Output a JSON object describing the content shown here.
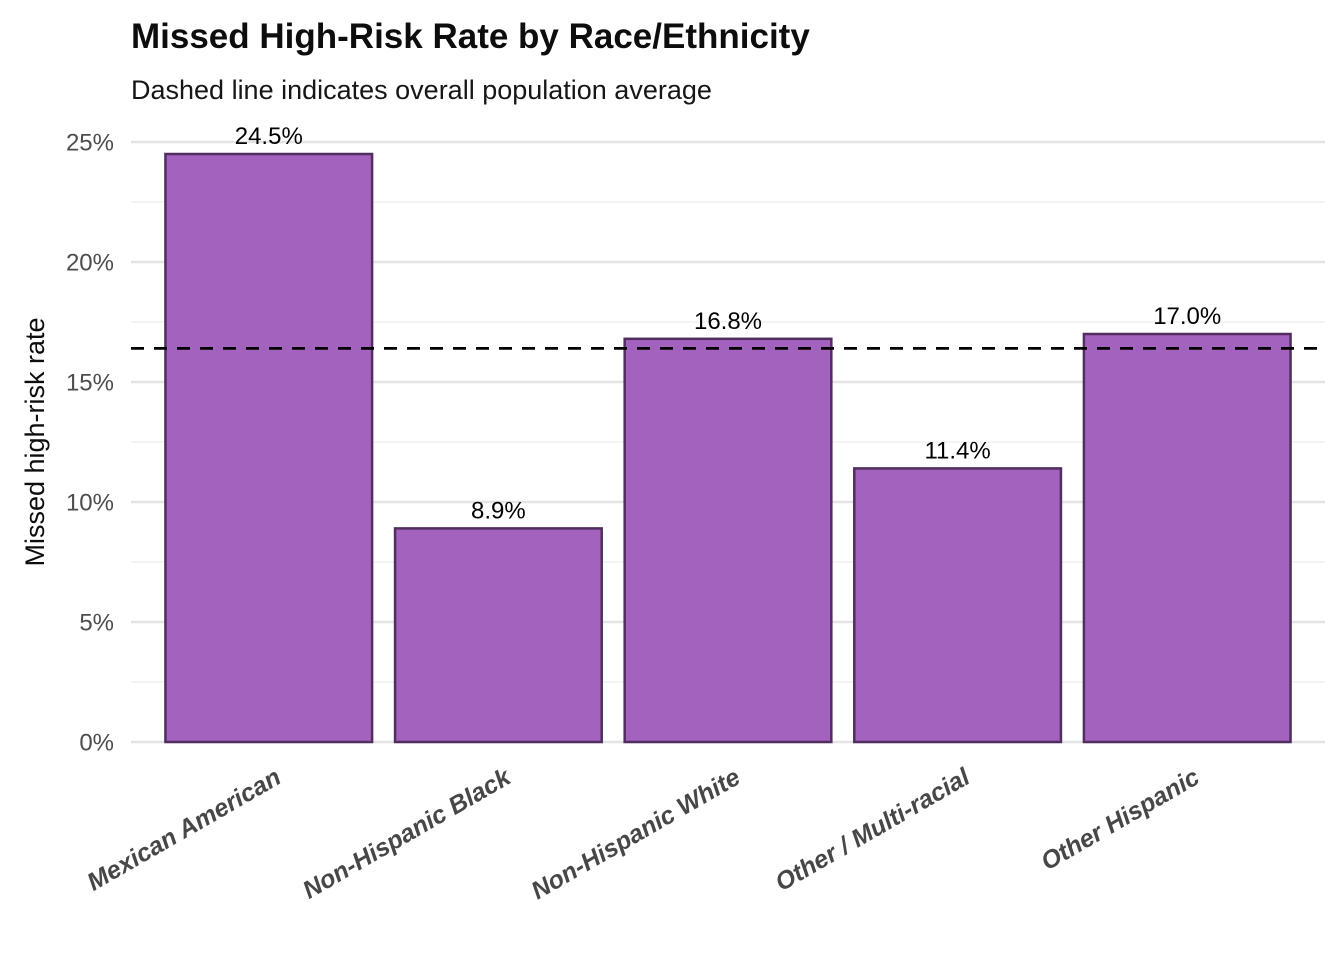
{
  "chart_data": {
    "type": "bar",
    "title": "Missed High-Risk Rate by Race/Ethnicity",
    "subtitle": "Dashed line indicates overall population average",
    "ylabel": "Missed high-risk rate",
    "xlabel": "",
    "categories": [
      "Mexican American",
      "Non-Hispanic Black",
      "Non-Hispanic White",
      "Other / Multi-racial",
      "Other Hispanic"
    ],
    "values": [
      24.5,
      8.9,
      16.8,
      11.4,
      17.0
    ],
    "value_labels": [
      "24.5%",
      "8.9%",
      "16.8%",
      "11.4%",
      "17.0%"
    ],
    "y_ticks": [
      0,
      5,
      10,
      15,
      20,
      25
    ],
    "y_tick_labels": [
      "0%",
      "5%",
      "10%",
      "15%",
      "20%",
      "25%"
    ],
    "ylim": [
      0,
      25.7
    ],
    "grid": "major+minor horizontal",
    "legend": "none",
    "x_tick_angle_deg": -30,
    "reference_line": {
      "value": 16.4,
      "style": "dashed"
    },
    "colors": {
      "bar_fill": "#A262BE",
      "bar_stroke": "#522E60",
      "reference_line": "#000000",
      "grid_major": "#E4E4E4",
      "grid_minor": "#F1F1F1",
      "axis_text": "#4D4D4D",
      "background": "#FFFFFF"
    }
  }
}
